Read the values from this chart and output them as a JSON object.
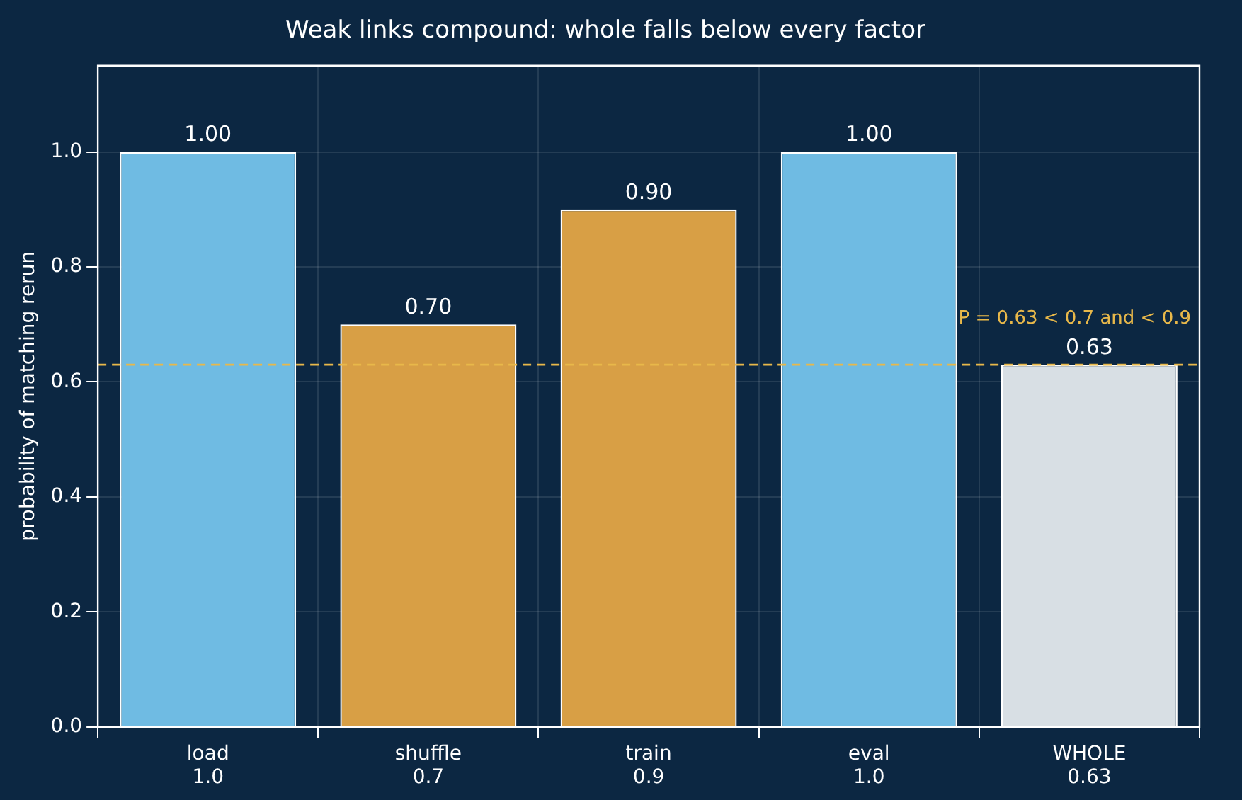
{
  "chart_data": {
    "type": "bar",
    "title": "Weak links compound: whole falls below every factor",
    "ylabel": "probability of matching rerun",
    "categories": [
      "load\n1.0",
      "shuffle\n0.7",
      "train\n0.9",
      "eval\n1.0",
      "WHOLE\n0.63"
    ],
    "values": [
      1.0,
      0.7,
      0.9,
      1.0,
      0.63
    ],
    "colors": [
      "#6fbbe3",
      "#d89f45",
      "#d89f45",
      "#6fbbe3",
      "#d8dfe4"
    ],
    "value_labels": [
      "1.00",
      "0.70",
      "0.90",
      "1.00",
      "0.63"
    ],
    "ylim": [
      0,
      1.15
    ],
    "yticks": [
      {
        "value": 0,
        "label": "0.0"
      },
      0.2,
      0.4,
      0.6,
      0.8,
      {
        "value": 1,
        "label": "1.0"
      }
    ],
    "grid": true,
    "legend": false,
    "ref_lines": [
      {
        "axis": "y",
        "value": 0.63,
        "color": "#e8b84a",
        "line_style": "dashed",
        "label": "P = 0.63 < 0.7 and < 0.9"
      }
    ]
  }
}
